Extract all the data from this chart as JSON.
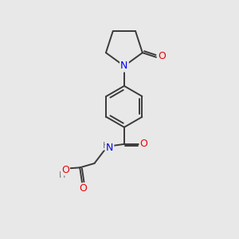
{
  "background_color": "#e8e8e8",
  "bond_color": "#3a3a3a",
  "bond_width": 1.4,
  "atom_colors": {
    "N": "#0000ee",
    "O": "#ee0000",
    "C": "#000000",
    "H": "#707070"
  },
  "font_size_atom": 8.5,
  "figsize": [
    3.0,
    3.0
  ],
  "dpi": 100
}
